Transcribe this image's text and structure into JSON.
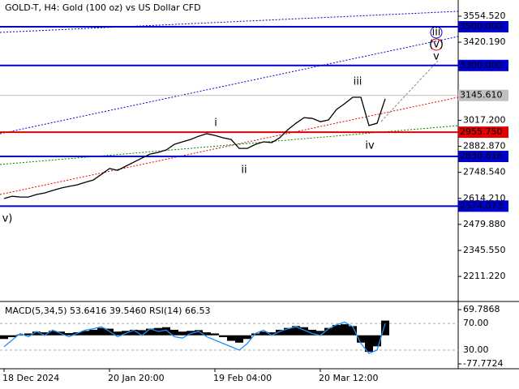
{
  "chart_data": [
    {
      "type": "line",
      "title": "GOLD-T, H4:  Gold (100 oz) vs US Dollar CFD",
      "categories": [
        "18 Dec 2024",
        null,
        null,
        null,
        null,
        null,
        null,
        null,
        null,
        null,
        null,
        null,
        null,
        "20 Jan 20:00",
        null,
        null,
        null,
        null,
        null,
        null,
        null,
        null,
        null,
        null,
        null,
        null,
        "19 Feb 04:00",
        null,
        null,
        null,
        null,
        null,
        null,
        null,
        null,
        null,
        null,
        null,
        null,
        "20 Mar 12:00",
        null,
        null,
        null,
        null,
        null,
        null,
        null,
        null
      ],
      "series": [
        {
          "name": "GOLD-T",
          "color": "#000000",
          "values": [
            2613,
            2625,
            2621,
            2621,
            2634,
            2642,
            2655,
            2667,
            2676,
            2684,
            2697,
            2709,
            2738,
            2768,
            2759,
            2780,
            2801,
            2822,
            2843,
            2851,
            2864,
            2893,
            2906,
            2918,
            2935,
            2948,
            2939,
            2927,
            2918,
            2872,
            2872,
            2893,
            2906,
            2902,
            2927,
            2969,
            3002,
            3031,
            3027,
            3010,
            3019,
            3073,
            3103,
            3136,
            3136,
            2990,
            3002,
            3128
          ]
        }
      ],
      "ylim": [
        2082,
        3638
      ],
      "yticks": [
        {
          "value": 3554.52,
          "label": "3554.520"
        },
        {
          "value": 3420.19,
          "label": "3420.190"
        },
        {
          "value": 3017.2,
          "label": "3017.200"
        },
        {
          "value": 2882.87,
          "label": "2882.870"
        },
        {
          "value": 2748.54,
          "label": "2748.540"
        },
        {
          "value": 2614.21,
          "label": "2614.210"
        },
        {
          "value": 2479.88,
          "label": "2479.880"
        },
        {
          "value": 2345.55,
          "label": "2345.550"
        },
        {
          "value": 2211.22,
          "label": "2211.220"
        }
      ],
      "levels": [
        {
          "value": 3500,
          "label": "3500.000",
          "color": "#0000cc"
        },
        {
          "value": 3300,
          "label": "3300.000",
          "color": "#0000cc"
        },
        {
          "value": 3145.61,
          "label": "3145.610",
          "color": "#c0c0c0"
        },
        {
          "value": 2955.75,
          "label": "2955.750",
          "color": "#e00000"
        },
        {
          "value": 2830.616,
          "label": "2830.616",
          "color": "#0000cc"
        },
        {
          "value": 2574.073,
          "label": "2574.073",
          "color": "#0000cc"
        }
      ],
      "annotations": [
        "i",
        "ii",
        "iii",
        "iv",
        "(v)",
        "v",
        "iii",
        "v)"
      ]
    },
    {
      "type": "indicator",
      "title": "MACD(5,34,5) 53.6416 39.5460 RSI(14) 66.53",
      "series": [
        {
          "name": "MACD(5,34,5)",
          "color": "#000000",
          "axis": "y2",
          "values": [
            -10,
            -5,
            2,
            5,
            10,
            8,
            12,
            10,
            6,
            8,
            12,
            15,
            20,
            18,
            10,
            12,
            15,
            14,
            18,
            20,
            22,
            15,
            10,
            12,
            14,
            8,
            5,
            -5,
            -15,
            -20,
            -10,
            5,
            10,
            8,
            15,
            20,
            25,
            22,
            15,
            12,
            20,
            28,
            30,
            25,
            -20,
            -45,
            -30,
            40
          ]
        },
        {
          "name": "RSI(14)",
          "color": "#1e90ff",
          "values": [
            35,
            45,
            55,
            50,
            58,
            52,
            60,
            55,
            50,
            55,
            60,
            62,
            65,
            58,
            50,
            55,
            60,
            52,
            62,
            58,
            60,
            50,
            48,
            55,
            58,
            50,
            45,
            40,
            35,
            30,
            40,
            55,
            60,
            52,
            58,
            62,
            65,
            60,
            55,
            52,
            62,
            68,
            72,
            65,
            40,
            25,
            30,
            70
          ]
        }
      ],
      "ylim": [
        2,
        103
      ],
      "yticks": [
        {
          "value": 70,
          "label": "70.00"
        },
        {
          "value": 30,
          "label": "30.00"
        }
      ],
      "y2lim": [
        -91,
        92
      ],
      "y2ticks": [
        69.7868,
        -77.7724
      ]
    }
  ]
}
